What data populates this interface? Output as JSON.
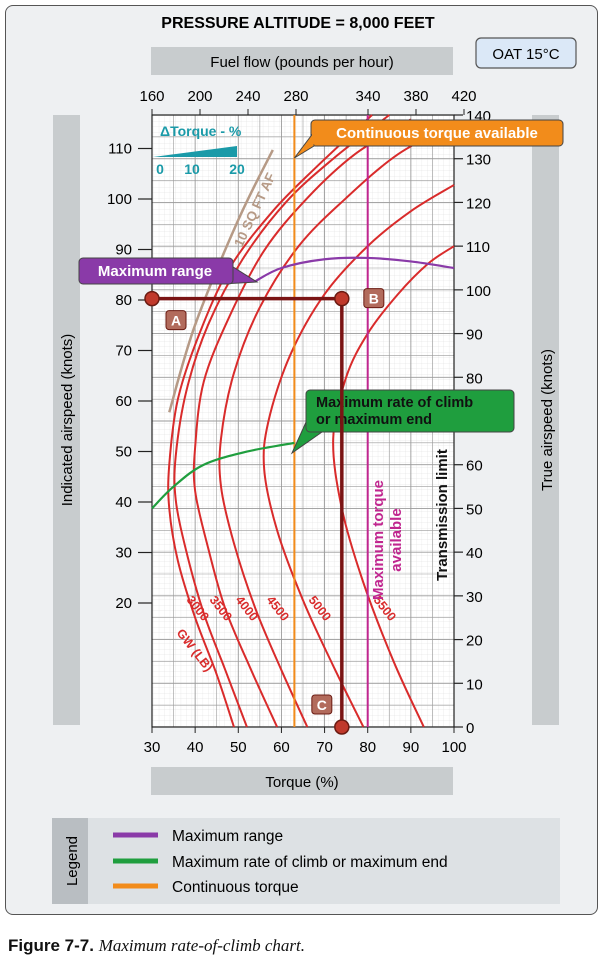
{
  "chart_data": {
    "type": "line",
    "title": "PRESSURE ALTITUDE = 8,000 FEET",
    "oat_label": "OAT 15°C",
    "top_axis": {
      "label": "Fuel flow (pounds per hour)",
      "ticks": [
        160,
        200,
        240,
        280,
        340,
        380,
        420
      ]
    },
    "bottom_axis": {
      "label": "Torque (%)",
      "range": [
        30,
        100
      ],
      "ticks": [
        30,
        40,
        50,
        60,
        70,
        80,
        90,
        100
      ]
    },
    "left_axis": {
      "label": "Indicated airspeed (knots)",
      "ticks": [
        20,
        30,
        40,
        50,
        60,
        70,
        80,
        90,
        100,
        110
      ]
    },
    "right_axis": {
      "label": "True airspeed (knots)",
      "range": [
        0,
        140
      ],
      "ticks": [
        0,
        10,
        20,
        30,
        40,
        50,
        60,
        80,
        90,
        100,
        110,
        120,
        130,
        140
      ]
    },
    "delta_torque": {
      "label": "ΔTorque - %",
      "ticks": [
        "0",
        "10",
        "20"
      ]
    },
    "gross_weight_label": "GW (LB)",
    "series": [
      {
        "name": "3000",
        "points": [
          [
            49,
            0
          ],
          [
            45,
            12
          ],
          [
            40,
            25
          ],
          [
            36,
            38
          ],
          [
            34,
            50
          ],
          [
            34,
            60
          ],
          [
            36,
            75
          ],
          [
            41,
            90
          ],
          [
            48,
            105
          ],
          [
            58,
            118
          ],
          [
            68,
            128
          ],
          [
            81,
            140
          ]
        ]
      },
      {
        "name": "3500",
        "points": [
          [
            52,
            0
          ],
          [
            47,
            13
          ],
          [
            42,
            26
          ],
          [
            38,
            40
          ],
          [
            35.5,
            52
          ],
          [
            35.5,
            62
          ],
          [
            38,
            77
          ],
          [
            43,
            92
          ],
          [
            51,
            107
          ],
          [
            61,
            120
          ],
          [
            72,
            130
          ],
          [
            85,
            140
          ]
        ]
      },
      {
        "name": "4000",
        "points": [
          [
            59,
            0
          ],
          [
            53,
            13
          ],
          [
            47,
            27
          ],
          [
            43,
            41
          ],
          [
            40,
            54
          ],
          [
            40,
            64
          ],
          [
            42,
            79
          ],
          [
            48,
            94
          ],
          [
            56,
            109
          ],
          [
            66,
            121
          ],
          [
            77,
            131
          ],
          [
            90,
            139
          ]
        ]
      },
      {
        "name": "4500",
        "points": [
          [
            66,
            0
          ],
          [
            60,
            13
          ],
          [
            54,
            27
          ],
          [
            49,
            42
          ],
          [
            46,
            55
          ],
          [
            46,
            66
          ],
          [
            49,
            81
          ],
          [
            55,
            96
          ],
          [
            64,
            110
          ],
          [
            75,
            121
          ],
          [
            87,
            131
          ],
          [
            100,
            138
          ]
        ]
      },
      {
        "name": "5000",
        "points": [
          [
            79,
            0
          ],
          [
            72,
            14
          ],
          [
            65,
            29
          ],
          [
            59,
            45
          ],
          [
            56,
            59
          ],
          [
            57,
            70
          ],
          [
            62,
            85
          ],
          [
            70,
            99
          ],
          [
            80,
            110
          ],
          [
            90,
            118
          ],
          [
            100,
            124
          ]
        ]
      },
      {
        "name": "5500",
        "points": [
          [
            93,
            0
          ],
          [
            86,
            15
          ],
          [
            79,
            33
          ],
          [
            74,
            50
          ],
          [
            72,
            66
          ],
          [
            75,
            80
          ],
          [
            80,
            90
          ],
          [
            87,
            99
          ],
          [
            94,
            106
          ],
          [
            100,
            110
          ]
        ]
      }
    ],
    "limit_lines": [
      {
        "name": "Continuous torque available",
        "torque": 63
      },
      {
        "name": "Maximum torque available",
        "torque": 80
      }
    ],
    "transmission_limit_label": "Transmission limit",
    "af_line_label": "10 SQ FT AF",
    "max_range_line": {
      "name": "Maximum range",
      "points": [
        [
          54,
          102
        ],
        [
          60,
          105
        ],
        [
          70,
          107
        ],
        [
          80,
          107.3
        ],
        [
          90,
          106.5
        ],
        [
          100,
          105
        ]
      ]
    },
    "max_climb_line": {
      "name": "Maximum rate of climb or maximum end",
      "points": [
        [
          30,
          50
        ],
        [
          35,
          55
        ],
        [
          42,
          60
        ],
        [
          52,
          63
        ],
        [
          63,
          65
        ]
      ]
    },
    "af_line": {
      "points": [
        [
          34,
          72
        ],
        [
          40,
          92
        ],
        [
          50,
          116
        ],
        [
          58,
          132
        ]
      ]
    },
    "example_points": [
      {
        "label": "A",
        "torque": 30,
        "tas": 98
      },
      {
        "label": "B",
        "torque": 74,
        "tas": 98
      },
      {
        "label": "C",
        "torque": 74,
        "tas": 0
      }
    ],
    "colors": {
      "gw_curves": "#d92b2b",
      "max_range": "#8a3aa8",
      "max_climb": "#1f9e3e",
      "continuous_torque": "#f28c1b",
      "max_torque": "#c0268f",
      "path": "#7a1414",
      "af_line": "#b69a86"
    },
    "legend": {
      "title": "Legend",
      "items": [
        {
          "label": "Maximum range",
          "color": "#8a3aa8"
        },
        {
          "label": "Maximum rate of climb or maximum end",
          "color": "#1f9e3e"
        },
        {
          "label": "Continuous torque",
          "color": "#f28c1b"
        }
      ]
    }
  },
  "caption": {
    "figure": "Figure 7-7.",
    "text": "Maximum rate-of-climb chart."
  }
}
